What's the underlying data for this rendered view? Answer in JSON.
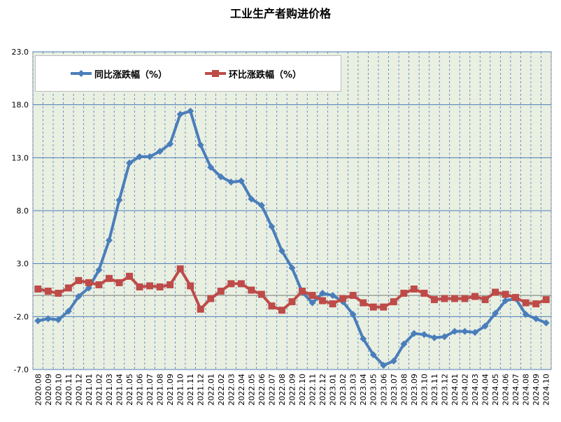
{
  "chart_data": {
    "type": "line",
    "title": "工业生产者购进价格",
    "xlabel": "",
    "ylabel": "",
    "ylim": [
      -7.0,
      23.0
    ],
    "yticks": [
      "23.0",
      "18.0",
      "13.0",
      "8.0",
      "3.0",
      "-2.0",
      "-7.0"
    ],
    "grid": true,
    "legend_position": "top-left",
    "categories": [
      "2020.08",
      "2020.09",
      "2020.10",
      "2020.11",
      "2020.12",
      "2021.01",
      "2021.02",
      "2021.03",
      "2021.04",
      "2021.05",
      "2021.06",
      "2021.07",
      "2021.08",
      "2021.09",
      "2021.10",
      "2021.11",
      "2021.12",
      "2022.01",
      "2022.02",
      "2022.03",
      "2022.04",
      "2022.05",
      "2022.06",
      "2022.07",
      "2022.08",
      "2022.09",
      "2022.10",
      "2022.11",
      "2022.12",
      "2023.01",
      "2023.02",
      "2023.03",
      "2023.04",
      "2023.05",
      "2023.06",
      "2023.07",
      "2023.08",
      "2023.09",
      "2023.10",
      "2023.11",
      "2023.12",
      "2024.01",
      "2024.02",
      "2024.03",
      "2024.04",
      "2024.05",
      "2024.06",
      "2024.07",
      "2024.08",
      "2024.09",
      "2024.10"
    ],
    "series": [
      {
        "name": "同比涨跌幅（%）",
        "color": "#4a7ebb",
        "marker": "diamond",
        "values": [
          -2.4,
          -2.2,
          -2.3,
          -1.5,
          -0.1,
          0.7,
          2.4,
          5.2,
          9.0,
          12.5,
          13.1,
          13.1,
          13.6,
          14.3,
          17.1,
          17.4,
          14.2,
          12.1,
          11.2,
          10.7,
          10.8,
          9.1,
          8.5,
          6.5,
          4.2,
          2.6,
          0.3,
          -0.7,
          0.2,
          0.0,
          -0.6,
          -1.8,
          -4.1,
          -5.6,
          -6.6,
          -6.2,
          -4.6,
          -3.6,
          -3.7,
          -4.0,
          -3.9,
          -3.4,
          -3.4,
          -3.5,
          -2.9,
          -1.7,
          -0.5,
          -0.3,
          -1.8,
          -2.2,
          -2.6
        ]
      },
      {
        "name": "环比涨跌幅（%）",
        "color": "#be4b48",
        "marker": "square",
        "values": [
          0.6,
          0.4,
          0.2,
          0.7,
          1.4,
          1.2,
          1.0,
          1.6,
          1.2,
          1.8,
          0.8,
          0.9,
          0.8,
          1.0,
          2.5,
          0.9,
          -1.3,
          -0.3,
          0.4,
          1.1,
          1.1,
          0.5,
          0.1,
          -1.0,
          -1.4,
          -0.6,
          0.4,
          0.0,
          -0.5,
          -0.8,
          -0.3,
          0.0,
          -0.7,
          -1.1,
          -1.1,
          -0.6,
          0.2,
          0.6,
          0.2,
          -0.4,
          -0.3,
          -0.3,
          -0.3,
          -0.1,
          -0.4,
          0.3,
          0.1,
          -0.2,
          -0.7,
          -0.8,
          -0.4
        ]
      }
    ]
  }
}
